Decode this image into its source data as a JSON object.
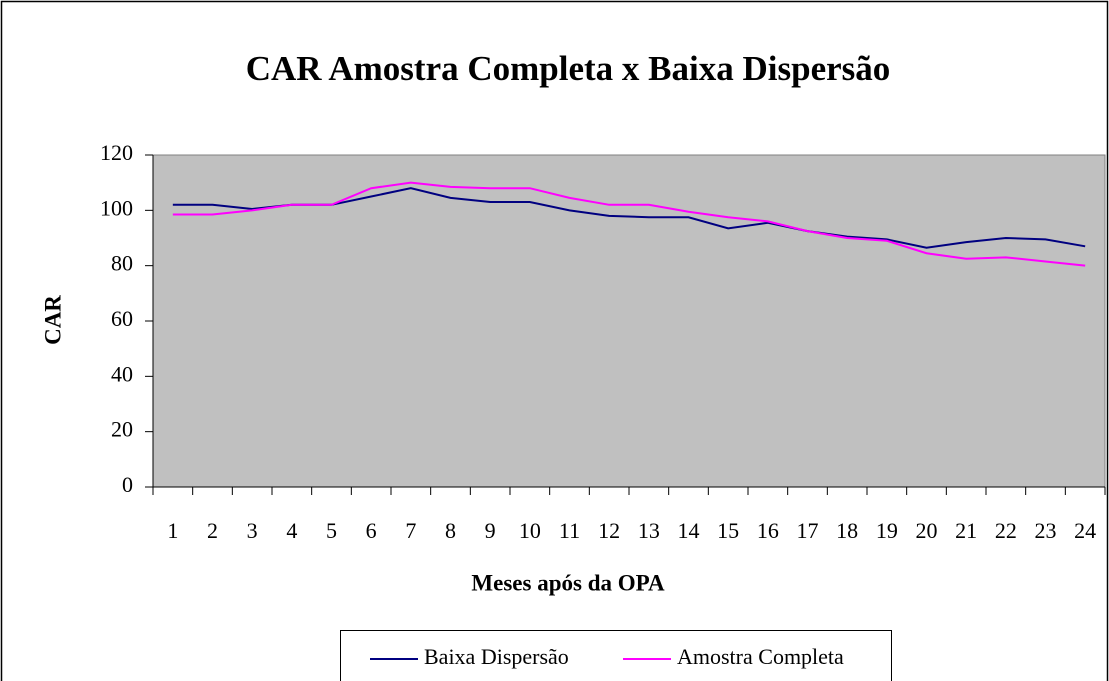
{
  "chart_data": {
    "type": "line",
    "title": "CAR Amostra Completa x Baixa Dispersão",
    "x_label": "Meses após da OPA",
    "y_label": "CAR",
    "categories": [
      "1",
      "2",
      "3",
      "4",
      "5",
      "6",
      "7",
      "8",
      "9",
      "10",
      "11",
      "12",
      "13",
      "14",
      "15",
      "16",
      "17",
      "18",
      "19",
      "20",
      "21",
      "22",
      "23",
      "24"
    ],
    "series": [
      {
        "name": "Baixa Dispersão",
        "color": "#000080",
        "values": [
          102,
          102,
          100.5,
          102,
          102,
          105,
          108,
          104.5,
          103,
          103,
          100,
          98,
          97.5,
          97.5,
          93.5,
          95.5,
          92.5,
          90.5,
          89.5,
          86.5,
          88.5,
          90,
          89.5,
          87
        ]
      },
      {
        "name": "Amostra Completa",
        "color": "#ff00ff",
        "values": [
          98.5,
          98.5,
          100,
          102,
          102,
          108,
          110,
          108.5,
          108,
          108,
          104.5,
          102,
          102,
          99.5,
          97.5,
          96,
          92.5,
          90,
          89,
          84.5,
          82.5,
          83,
          81.5,
          80
        ]
      }
    ],
    "ylim": [
      0,
      120
    ],
    "yticks": [
      0,
      20,
      40,
      60,
      80,
      100,
      120
    ],
    "plot_background": "#c0c0c0",
    "legend": "bottom"
  }
}
